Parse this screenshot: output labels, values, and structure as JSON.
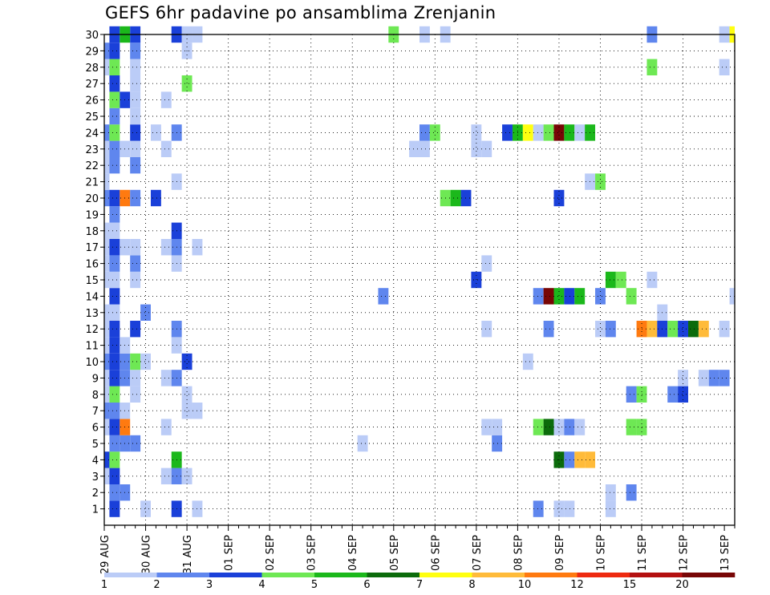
{
  "chart_data": {
    "type": "heatmap",
    "title": "GEFS 6hr padavine po ansamblima Zrenjanin",
    "xlabel": "",
    "ylabel": "",
    "x_ticks": [
      "29 AUG",
      "30 AUG",
      "31 AUG",
      "01 SEP",
      "02 SEP",
      "03 SEP",
      "04 SEP",
      "05 SEP",
      "06 SEP",
      "07 SEP",
      "08 SEP",
      "09 SEP",
      "10 SEP",
      "11 SEP",
      "12 SEP",
      "13 SEP"
    ],
    "x_steps": 61,
    "x_step_hours": 6,
    "y_ticks": [
      1,
      2,
      3,
      4,
      5,
      6,
      7,
      8,
      9,
      10,
      11,
      12,
      13,
      14,
      15,
      16,
      17,
      18,
      19,
      20,
      21,
      22,
      23,
      24,
      25,
      26,
      27,
      28,
      29,
      30
    ],
    "ylim": [
      0,
      30
    ],
    "grid": true,
    "color_bounds": [
      1,
      2,
      3,
      4,
      5,
      6,
      7,
      8,
      10,
      12,
      15,
      20
    ],
    "colors": [
      "#bbccf7",
      "#5f86ee",
      "#1a40d9",
      "#6ee854",
      "#1bb81b",
      "#0b6b0b",
      "#ffff10",
      "#ffbb3a",
      "#ff7a10",
      "#ee2a10",
      "#b41010",
      "#780606"
    ],
    "colorbar_labels": [
      {
        "text": "1",
        "at": 0
      },
      {
        "text": "2",
        "at": 1
      },
      {
        "text": "3",
        "at": 2
      },
      {
        "text": "4",
        "at": 3
      },
      {
        "text": "5",
        "at": 4
      },
      {
        "text": "6",
        "at": 5
      },
      {
        "text": "7",
        "at": 6
      },
      {
        "text": "8",
        "at": 7
      },
      {
        "text": "10",
        "at": 8
      },
      {
        "text": "12",
        "at": 9
      },
      {
        "text": "15",
        "at": 10
      },
      {
        "text": "20",
        "at": 11
      }
    ],
    "cells": [
      [
        1,
        1,
        3
      ],
      [
        1,
        4,
        1
      ],
      [
        1,
        7,
        3
      ],
      [
        1,
        44,
        1
      ],
      [
        1,
        45,
        1
      ],
      [
        1,
        49,
        1
      ],
      [
        1,
        42,
        2
      ],
      [
        1,
        9,
        1
      ],
      [
        2,
        1,
        2
      ],
      [
        2,
        2,
        2
      ],
      [
        2,
        49,
        1
      ],
      [
        2,
        51,
        2
      ],
      [
        3,
        0,
        1
      ],
      [
        3,
        1,
        3
      ],
      [
        3,
        6,
        1
      ],
      [
        3,
        7,
        2
      ],
      [
        3,
        8,
        1
      ],
      [
        4,
        0,
        3
      ],
      [
        4,
        1,
        4
      ],
      [
        4,
        7,
        5
      ],
      [
        4,
        44,
        6
      ],
      [
        4,
        45,
        2
      ],
      [
        4,
        46,
        8
      ],
      [
        4,
        47,
        8
      ],
      [
        5,
        1,
        2
      ],
      [
        5,
        2,
        2
      ],
      [
        5,
        3,
        2
      ],
      [
        5,
        25,
        1
      ],
      [
        5,
        38,
        2
      ],
      [
        6,
        0,
        1
      ],
      [
        6,
        1,
        3
      ],
      [
        6,
        2,
        9
      ],
      [
        6,
        6,
        1
      ],
      [
        6,
        37,
        1
      ],
      [
        6,
        38,
        1
      ],
      [
        6,
        42,
        4
      ],
      [
        6,
        43,
        6
      ],
      [
        6,
        44,
        1
      ],
      [
        6,
        45,
        2
      ],
      [
        6,
        46,
        1
      ],
      [
        6,
        51,
        4
      ],
      [
        6,
        52,
        4
      ],
      [
        7,
        0,
        2
      ],
      [
        7,
        1,
        2
      ],
      [
        7,
        2,
        1
      ],
      [
        7,
        8,
        1
      ],
      [
        7,
        9,
        1
      ],
      [
        8,
        0,
        1
      ],
      [
        8,
        1,
        4
      ],
      [
        8,
        3,
        1
      ],
      [
        8,
        8,
        1
      ],
      [
        8,
        51,
        2
      ],
      [
        8,
        52,
        4
      ],
      [
        8,
        55,
        2
      ],
      [
        8,
        56,
        3
      ],
      [
        9,
        0,
        1
      ],
      [
        9,
        1,
        3
      ],
      [
        9,
        2,
        2
      ],
      [
        9,
        3,
        1
      ],
      [
        9,
        6,
        1
      ],
      [
        9,
        7,
        2
      ],
      [
        9,
        56,
        1
      ],
      [
        9,
        58,
        1
      ],
      [
        9,
        59,
        2
      ],
      [
        9,
        60,
        2
      ],
      [
        10,
        0,
        2
      ],
      [
        10,
        1,
        3
      ],
      [
        10,
        2,
        2
      ],
      [
        10,
        3,
        4
      ],
      [
        10,
        4,
        1
      ],
      [
        10,
        8,
        3
      ],
      [
        10,
        41,
        1
      ],
      [
        11,
        0,
        1
      ],
      [
        11,
        1,
        3
      ],
      [
        11,
        2,
        1
      ],
      [
        11,
        7,
        1
      ],
      [
        12,
        0,
        1
      ],
      [
        12,
        1,
        3
      ],
      [
        12,
        3,
        3
      ],
      [
        12,
        7,
        2
      ],
      [
        12,
        37,
        1
      ],
      [
        12,
        43,
        2
      ],
      [
        12,
        48,
        1
      ],
      [
        12,
        49,
        2
      ],
      [
        12,
        52,
        9
      ],
      [
        12,
        53,
        8
      ],
      [
        12,
        54,
        3
      ],
      [
        12,
        55,
        4
      ],
      [
        12,
        56,
        3
      ],
      [
        12,
        57,
        6
      ],
      [
        12,
        58,
        8
      ],
      [
        12,
        60,
        1
      ],
      [
        13,
        0,
        1
      ],
      [
        13,
        1,
        1
      ],
      [
        13,
        4,
        2
      ],
      [
        13,
        54,
        1
      ],
      [
        14,
        1,
        3
      ],
      [
        14,
        27,
        2
      ],
      [
        14,
        42,
        2
      ],
      [
        14,
        43,
        12
      ],
      [
        14,
        44,
        5
      ],
      [
        14,
        45,
        3
      ],
      [
        14,
        46,
        5
      ],
      [
        14,
        48,
        2
      ],
      [
        14,
        51,
        4
      ],
      [
        14,
        61,
        1
      ],
      [
        15,
        0,
        1
      ],
      [
        15,
        1,
        1
      ],
      [
        15,
        3,
        1
      ],
      [
        15,
        36,
        3
      ],
      [
        15,
        49,
        5
      ],
      [
        15,
        50,
        4
      ],
      [
        15,
        53,
        1
      ],
      [
        16,
        0,
        1
      ],
      [
        16,
        1,
        2
      ],
      [
        16,
        3,
        2
      ],
      [
        16,
        7,
        1
      ],
      [
        16,
        37,
        1
      ],
      [
        17,
        0,
        1
      ],
      [
        17,
        1,
        3
      ],
      [
        17,
        2,
        1
      ],
      [
        17,
        3,
        1
      ],
      [
        17,
        6,
        1
      ],
      [
        17,
        7,
        2
      ],
      [
        17,
        9,
        1
      ],
      [
        18,
        0,
        1
      ],
      [
        18,
        1,
        1
      ],
      [
        18,
        7,
        3
      ],
      [
        19,
        1,
        2
      ],
      [
        20,
        0,
        2
      ],
      [
        20,
        1,
        3
      ],
      [
        20,
        2,
        9
      ],
      [
        20,
        3,
        2
      ],
      [
        20,
        5,
        3
      ],
      [
        20,
        33,
        4
      ],
      [
        20,
        34,
        5
      ],
      [
        20,
        35,
        3
      ],
      [
        20,
        44,
        3
      ],
      [
        21,
        0,
        1
      ],
      [
        21,
        7,
        1
      ],
      [
        21,
        47,
        1
      ],
      [
        21,
        48,
        4
      ],
      [
        22,
        0,
        1
      ],
      [
        22,
        1,
        2
      ],
      [
        22,
        3,
        2
      ],
      [
        23,
        0,
        1
      ],
      [
        23,
        1,
        2
      ],
      [
        23,
        2,
        1
      ],
      [
        23,
        3,
        1
      ],
      [
        23,
        6,
        1
      ],
      [
        23,
        30,
        1
      ],
      [
        23,
        31,
        1
      ],
      [
        23,
        36,
        1
      ],
      [
        23,
        37,
        1
      ],
      [
        24,
        0,
        2
      ],
      [
        24,
        1,
        4
      ],
      [
        24,
        3,
        3
      ],
      [
        24,
        5,
        1
      ],
      [
        24,
        7,
        2
      ],
      [
        24,
        31,
        2
      ],
      [
        24,
        32,
        4
      ],
      [
        24,
        36,
        1
      ],
      [
        24,
        39,
        3
      ],
      [
        24,
        40,
        5
      ],
      [
        24,
        41,
        7
      ],
      [
        24,
        42,
        1
      ],
      [
        24,
        43,
        4
      ],
      [
        24,
        44,
        12
      ],
      [
        24,
        45,
        5
      ],
      [
        24,
        46,
        1
      ],
      [
        24,
        47,
        5
      ],
      [
        25,
        1,
        2
      ],
      [
        25,
        3,
        1
      ],
      [
        26,
        1,
        4
      ],
      [
        26,
        2,
        3
      ],
      [
        26,
        3,
        1
      ],
      [
        26,
        6,
        1
      ],
      [
        27,
        1,
        3
      ],
      [
        27,
        3,
        1
      ],
      [
        27,
        8,
        4
      ],
      [
        28,
        0,
        1
      ],
      [
        28,
        1,
        4
      ],
      [
        28,
        3,
        1
      ],
      [
        28,
        53,
        4
      ],
      [
        28,
        60,
        1
      ],
      [
        29,
        0,
        2
      ],
      [
        29,
        1,
        3
      ],
      [
        29,
        3,
        2
      ],
      [
        29,
        8,
        1
      ],
      [
        30,
        1,
        3
      ],
      [
        30,
        2,
        5
      ],
      [
        30,
        3,
        3
      ],
      [
        30,
        7,
        3
      ],
      [
        30,
        8,
        1
      ],
      [
        30,
        9,
        1
      ],
      [
        30,
        28,
        4
      ],
      [
        30,
        31,
        1
      ],
      [
        30,
        33,
        1
      ],
      [
        30,
        53,
        2
      ],
      [
        30,
        60,
        1
      ],
      [
        30,
        61,
        7
      ]
    ]
  }
}
